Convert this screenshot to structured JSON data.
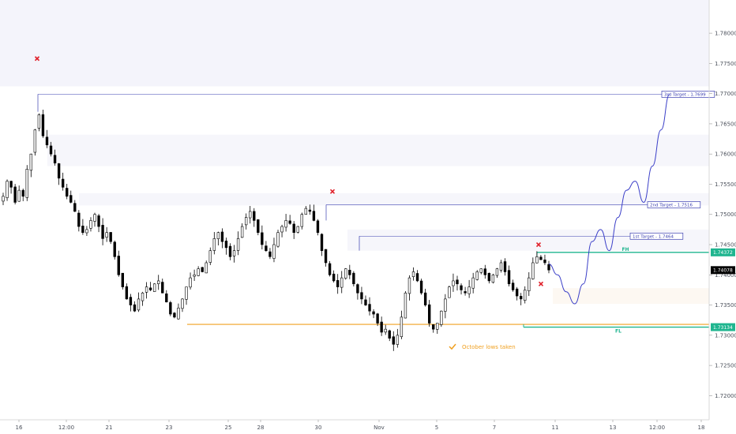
{
  "chart_data": {
    "type": "candlestick",
    "instrument_scale": "price",
    "ylim": [
      1.716,
      1.7855
    ],
    "grid": false,
    "y_ticks": [
      "1.78000",
      "1.77500",
      "1.77000",
      "1.76500",
      "1.76000",
      "1.75500",
      "1.75000",
      "1.74500",
      "1.74000",
      "1.73500",
      "1.73000",
      "1.72500",
      "1.72000"
    ],
    "y_tick_values": [
      1.78,
      1.775,
      1.77,
      1.765,
      1.76,
      1.755,
      1.75,
      1.745,
      1.74,
      1.735,
      1.73,
      1.725,
      1.72
    ],
    "x_ticks": [
      "16",
      "12:00",
      "21",
      "23",
      "25",
      "28",
      "30",
      "Nov",
      "5",
      "7",
      "11",
      "13",
      "12:00",
      "18"
    ],
    "price_path": [
      1.753,
      1.7555,
      1.7545,
      1.752,
      1.754,
      1.753,
      1.7575,
      1.76,
      1.764,
      1.7665,
      1.763,
      1.7615,
      1.76,
      1.7585,
      1.756,
      1.7545,
      1.753,
      1.752,
      1.7505,
      1.748,
      1.747,
      1.7475,
      1.749,
      1.75,
      1.748,
      1.746,
      1.747,
      1.7455,
      1.743,
      1.74,
      1.738,
      1.736,
      1.735,
      1.734,
      1.736,
      1.737,
      1.738,
      1.7375,
      1.7385,
      1.739,
      1.737,
      1.7355,
      1.7335,
      1.733,
      1.7345,
      1.736,
      1.738,
      1.7395,
      1.74,
      1.741,
      1.7405,
      1.742,
      1.744,
      1.746,
      1.747,
      1.7455,
      1.7445,
      1.743,
      1.744,
      1.746,
      1.748,
      1.7495,
      1.7505,
      1.749,
      1.747,
      1.745,
      1.744,
      1.743,
      1.745,
      1.747,
      1.748,
      1.749,
      1.7485,
      1.747,
      1.748,
      1.75,
      1.751,
      1.7505,
      1.749,
      1.747,
      1.744,
      1.742,
      1.74,
      1.739,
      1.738,
      1.7395,
      1.741,
      1.74,
      1.7385,
      1.737,
      1.736,
      1.735,
      1.734,
      1.7335,
      1.732,
      1.7305,
      1.731,
      1.7295,
      1.7285,
      1.73,
      1.733,
      1.737,
      1.7395,
      1.7405,
      1.739,
      1.737,
      1.735,
      1.732,
      1.731,
      1.732,
      1.734,
      1.736,
      1.738,
      1.739,
      1.7385,
      1.7375,
      1.737,
      1.738,
      1.7395,
      1.7405,
      1.741,
      1.74,
      1.739,
      1.74,
      1.741,
      1.742,
      1.7405,
      1.7385,
      1.7375,
      1.7365,
      1.736,
      1.7375,
      1.7395,
      1.742,
      1.743,
      1.7425,
      1.742,
      1.7408
    ],
    "last_price": "1.74078",
    "levels": [
      {
        "name": "3rd Target - 1.7699",
        "value": 1.7699
      },
      {
        "name": "2nd Target - 1.7516",
        "value": 1.7516
      },
      {
        "name": "1st Target - 1.7464",
        "value": 1.7464
      }
    ],
    "fh": {
      "label": "FH",
      "value": 1.74372,
      "tag": "1.74372"
    },
    "fl": {
      "label": "FL",
      "value": 1.73134,
      "tag": "1.73134"
    },
    "october_low": 1.7318,
    "projection_path": [
      1.7418,
      1.74,
      1.7372,
      1.7352,
      1.7385,
      1.7455,
      1.7475,
      1.744,
      1.7495,
      1.754,
      1.7555,
      1.752,
      1.758,
      1.764,
      1.7699
    ],
    "annotation": "October lows taken",
    "colors": {
      "up": "#ffffff",
      "down": "#000000",
      "wick": "#000000",
      "target": "#3b3fb0",
      "level": "#1fb58f",
      "orange": "#f0a020",
      "marker": "#e0202a",
      "last_tag": "#000000"
    }
  }
}
